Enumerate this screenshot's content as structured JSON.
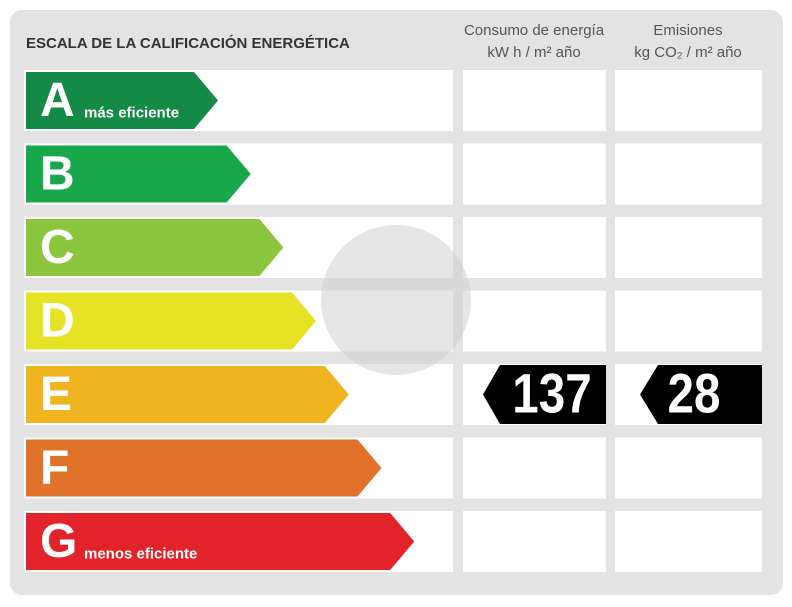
{
  "header": {
    "title": "ESCALA DE LA CALIFICACIÓN ENERGÉTICA",
    "columns": [
      {
        "line1": "Consumo de energía",
        "line2": "kW h  / m² año"
      },
      {
        "line1": "Emisiones",
        "line2": "kg CO₂  / m² año"
      }
    ]
  },
  "rows": [
    {
      "letter": "A",
      "label": "más eficiente",
      "color": "#138a45"
    },
    {
      "letter": "B",
      "color": "#18a84b"
    },
    {
      "letter": "C",
      "color": "#8cc63f"
    },
    {
      "letter": "D",
      "color": "#e6e326"
    },
    {
      "letter": "E",
      "color": "#efb41f",
      "consumption": 137,
      "emissions": 28
    },
    {
      "letter": "F",
      "color": "#e07329"
    },
    {
      "letter": "G",
      "label": "menos eficiente",
      "color": "#e2232a"
    }
  ]
}
